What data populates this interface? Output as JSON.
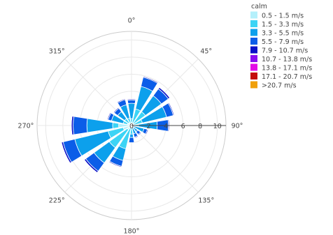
{
  "chart_data": {
    "type": "barpolar",
    "title": "",
    "angular_axis": {
      "rotation": 90,
      "direction": "clockwise",
      "ticks": [
        {
          "angle": 0,
          "label": "0°"
        },
        {
          "angle": 45,
          "label": "45°"
        },
        {
          "angle": 90,
          "label": "90°"
        },
        {
          "angle": 135,
          "label": "135°"
        },
        {
          "angle": 180,
          "label": "180°"
        },
        {
          "angle": 225,
          "label": "225°"
        },
        {
          "angle": 270,
          "label": "270°"
        },
        {
          "angle": 315,
          "label": "315°"
        }
      ]
    },
    "radial_axis": {
      "range": [
        0,
        11
      ],
      "ticks": [
        {
          "value": 0,
          "label": "0"
        },
        {
          "value": 2,
          "label": "2"
        },
        {
          "value": 4,
          "label": "4"
        },
        {
          "value": 6,
          "label": "6"
        },
        {
          "value": 8,
          "label": "8"
        },
        {
          "value": 10,
          "label": "10"
        }
      ]
    },
    "legend_position": "right",
    "legend_title": "calm",
    "directions": [
      0,
      22.5,
      45,
      67.5,
      90,
      112.5,
      135,
      157.5,
      180,
      202.5,
      225,
      247.5,
      270,
      292.5,
      315,
      337.5
    ],
    "sector_width_deg": 18,
    "series": [
      {
        "name": "0.5 - 1.5 m/s",
        "color": "#b4f0fb",
        "values": [
          0.3,
          0.3,
          0.3,
          0.2,
          0.0,
          0.0,
          0.0,
          0.0,
          0.3,
          0.3,
          0.6,
          1.0,
          1.5,
          0.5,
          0.4,
          0.3
        ]
      },
      {
        "name": "1.5 - 3.3 m/s",
        "color": "#3cd4f5",
        "values": [
          0.8,
          2.0,
          2.0,
          1.3,
          0.8,
          0.2,
          0.3,
          0.0,
          1.0,
          2.8,
          3.2,
          2.8,
          2.2,
          1.0,
          1.0,
          0.9
        ]
      },
      {
        "name": "3.3 - 5.5 m/s",
        "color": "#0ca0ec",
        "values": [
          2.6,
          4.7,
          4.3,
          4.2,
          3.0,
          1.5,
          0.9,
          1.0,
          1.4,
          4.2,
          5.4,
          6.8,
          5.2,
          2.4,
          2.0,
          2.5
        ]
      },
      {
        "name": "5.5 - 7.9 m/s",
        "color": "#0b5de8",
        "values": [
          3.0,
          5.8,
          5.3,
          5.0,
          4.3,
          1.9,
          1.3,
          1.4,
          2.0,
          4.9,
          6.6,
          8.2,
          6.8,
          2.8,
          2.5,
          3.1
        ]
      },
      {
        "name": "7.9 - 10.7 m/s",
        "color": "#0a10c8",
        "values": [
          3.1,
          5.9,
          5.5,
          5.1,
          4.4,
          2.0,
          1.4,
          1.5,
          2.0,
          5.0,
          6.8,
          8.4,
          7.0,
          2.9,
          2.6,
          3.2
        ]
      },
      {
        "name": "10.7 - 13.8 m/s",
        "color": "#8a0cf0",
        "values": [
          3.1,
          5.9,
          5.5,
          5.1,
          4.4,
          2.0,
          1.4,
          1.5,
          2.0,
          5.0,
          6.8,
          8.45,
          7.0,
          2.9,
          2.6,
          3.2
        ]
      },
      {
        "name": "13.8 - 17.1 m/s",
        "color": "#e40ce6",
        "values": [
          3.1,
          5.9,
          5.5,
          5.1,
          4.4,
          2.0,
          1.4,
          1.5,
          2.0,
          5.0,
          6.8,
          8.5,
          7.0,
          2.9,
          2.6,
          3.2
        ]
      },
      {
        "name": "17.1 - 20.7 m/s",
        "color": "#c40c0c",
        "values": [
          3.1,
          5.9,
          5.5,
          5.1,
          4.4,
          2.0,
          1.4,
          1.5,
          2.0,
          5.0,
          6.8,
          8.5,
          7.0,
          2.9,
          2.6,
          3.2
        ]
      },
      {
        "name": ">20.7 m/s",
        "color": "#f0a00a",
        "values": [
          3.1,
          5.9,
          5.5,
          5.1,
          4.4,
          2.0,
          1.4,
          1.5,
          2.0,
          5.0,
          6.8,
          8.5,
          7.0,
          2.9,
          2.6,
          3.2
        ]
      }
    ],
    "grid": true,
    "grid_color": "#e8e8e8",
    "line_color": "#cccccc"
  }
}
